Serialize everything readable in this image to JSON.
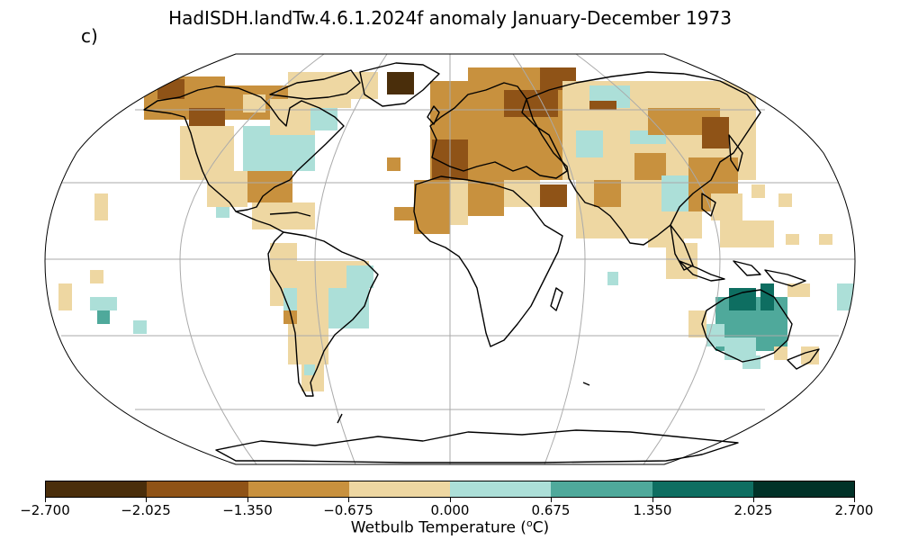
{
  "title": "HadISDH.landTw.4.6.1.2024f anomaly January-December 1973",
  "panel_label": "c)",
  "colorbar": {
    "label": "Wetbulb Temperature (ᴼC)",
    "label_text": "Wetbulb Temperature (",
    "label_sup": "o",
    "label_unit": "C)",
    "ticks": [
      "−2.700",
      "−2.025",
      "−1.350",
      "−0.675",
      "0.000",
      "0.675",
      "1.350",
      "2.025",
      "2.700"
    ],
    "colors": [
      "#4a2e0b",
      "#8f5317",
      "#c8913e",
      "#eed7a2",
      "#acdfd8",
      "#4fa99b",
      "#0e6e61",
      "#013228"
    ]
  },
  "map_data": {
    "projection": "Robinson",
    "variable": "Wetbulb temperature anomaly",
    "units": "°C",
    "period": "January-December 1973",
    "bins": [
      -2.7,
      -2.025,
      -1.35,
      -0.675,
      0.0,
      0.675,
      1.35,
      2.025,
      2.7
    ]
  }
}
